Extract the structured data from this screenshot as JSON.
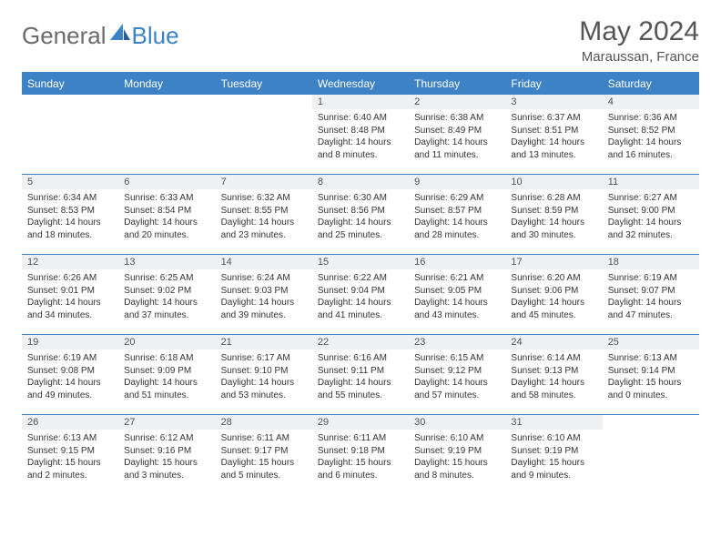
{
  "logo": {
    "part1": "General",
    "part2": "Blue"
  },
  "title": "May 2024",
  "location": "Maraussan, France",
  "colors": {
    "accent": "#3d82c4",
    "header_text": "#ffffff",
    "daynum_bg": "#eef0f2",
    "text": "#333333",
    "logo_gray": "#6b6b6b"
  },
  "weekdays": [
    "Sunday",
    "Monday",
    "Tuesday",
    "Wednesday",
    "Thursday",
    "Friday",
    "Saturday"
  ],
  "weeks": [
    [
      {
        "n": "",
        "lines": []
      },
      {
        "n": "",
        "lines": []
      },
      {
        "n": "",
        "lines": []
      },
      {
        "n": "1",
        "lines": [
          "Sunrise: 6:40 AM",
          "Sunset: 8:48 PM",
          "Daylight: 14 hours and 8 minutes."
        ]
      },
      {
        "n": "2",
        "lines": [
          "Sunrise: 6:38 AM",
          "Sunset: 8:49 PM",
          "Daylight: 14 hours and 11 minutes."
        ]
      },
      {
        "n": "3",
        "lines": [
          "Sunrise: 6:37 AM",
          "Sunset: 8:51 PM",
          "Daylight: 14 hours and 13 minutes."
        ]
      },
      {
        "n": "4",
        "lines": [
          "Sunrise: 6:36 AM",
          "Sunset: 8:52 PM",
          "Daylight: 14 hours and 16 minutes."
        ]
      }
    ],
    [
      {
        "n": "5",
        "lines": [
          "Sunrise: 6:34 AM",
          "Sunset: 8:53 PM",
          "Daylight: 14 hours and 18 minutes."
        ]
      },
      {
        "n": "6",
        "lines": [
          "Sunrise: 6:33 AM",
          "Sunset: 8:54 PM",
          "Daylight: 14 hours and 20 minutes."
        ]
      },
      {
        "n": "7",
        "lines": [
          "Sunrise: 6:32 AM",
          "Sunset: 8:55 PM",
          "Daylight: 14 hours and 23 minutes."
        ]
      },
      {
        "n": "8",
        "lines": [
          "Sunrise: 6:30 AM",
          "Sunset: 8:56 PM",
          "Daylight: 14 hours and 25 minutes."
        ]
      },
      {
        "n": "9",
        "lines": [
          "Sunrise: 6:29 AM",
          "Sunset: 8:57 PM",
          "Daylight: 14 hours and 28 minutes."
        ]
      },
      {
        "n": "10",
        "lines": [
          "Sunrise: 6:28 AM",
          "Sunset: 8:59 PM",
          "Daylight: 14 hours and 30 minutes."
        ]
      },
      {
        "n": "11",
        "lines": [
          "Sunrise: 6:27 AM",
          "Sunset: 9:00 PM",
          "Daylight: 14 hours and 32 minutes."
        ]
      }
    ],
    [
      {
        "n": "12",
        "lines": [
          "Sunrise: 6:26 AM",
          "Sunset: 9:01 PM",
          "Daylight: 14 hours and 34 minutes."
        ]
      },
      {
        "n": "13",
        "lines": [
          "Sunrise: 6:25 AM",
          "Sunset: 9:02 PM",
          "Daylight: 14 hours and 37 minutes."
        ]
      },
      {
        "n": "14",
        "lines": [
          "Sunrise: 6:24 AM",
          "Sunset: 9:03 PM",
          "Daylight: 14 hours and 39 minutes."
        ]
      },
      {
        "n": "15",
        "lines": [
          "Sunrise: 6:22 AM",
          "Sunset: 9:04 PM",
          "Daylight: 14 hours and 41 minutes."
        ]
      },
      {
        "n": "16",
        "lines": [
          "Sunrise: 6:21 AM",
          "Sunset: 9:05 PM",
          "Daylight: 14 hours and 43 minutes."
        ]
      },
      {
        "n": "17",
        "lines": [
          "Sunrise: 6:20 AM",
          "Sunset: 9:06 PM",
          "Daylight: 14 hours and 45 minutes."
        ]
      },
      {
        "n": "18",
        "lines": [
          "Sunrise: 6:19 AM",
          "Sunset: 9:07 PM",
          "Daylight: 14 hours and 47 minutes."
        ]
      }
    ],
    [
      {
        "n": "19",
        "lines": [
          "Sunrise: 6:19 AM",
          "Sunset: 9:08 PM",
          "Daylight: 14 hours and 49 minutes."
        ]
      },
      {
        "n": "20",
        "lines": [
          "Sunrise: 6:18 AM",
          "Sunset: 9:09 PM",
          "Daylight: 14 hours and 51 minutes."
        ]
      },
      {
        "n": "21",
        "lines": [
          "Sunrise: 6:17 AM",
          "Sunset: 9:10 PM",
          "Daylight: 14 hours and 53 minutes."
        ]
      },
      {
        "n": "22",
        "lines": [
          "Sunrise: 6:16 AM",
          "Sunset: 9:11 PM",
          "Daylight: 14 hours and 55 minutes."
        ]
      },
      {
        "n": "23",
        "lines": [
          "Sunrise: 6:15 AM",
          "Sunset: 9:12 PM",
          "Daylight: 14 hours and 57 minutes."
        ]
      },
      {
        "n": "24",
        "lines": [
          "Sunrise: 6:14 AM",
          "Sunset: 9:13 PM",
          "Daylight: 14 hours and 58 minutes."
        ]
      },
      {
        "n": "25",
        "lines": [
          "Sunrise: 6:13 AM",
          "Sunset: 9:14 PM",
          "Daylight: 15 hours and 0 minutes."
        ]
      }
    ],
    [
      {
        "n": "26",
        "lines": [
          "Sunrise: 6:13 AM",
          "Sunset: 9:15 PM",
          "Daylight: 15 hours and 2 minutes."
        ]
      },
      {
        "n": "27",
        "lines": [
          "Sunrise: 6:12 AM",
          "Sunset: 9:16 PM",
          "Daylight: 15 hours and 3 minutes."
        ]
      },
      {
        "n": "28",
        "lines": [
          "Sunrise: 6:11 AM",
          "Sunset: 9:17 PM",
          "Daylight: 15 hours and 5 minutes."
        ]
      },
      {
        "n": "29",
        "lines": [
          "Sunrise: 6:11 AM",
          "Sunset: 9:18 PM",
          "Daylight: 15 hours and 6 minutes."
        ]
      },
      {
        "n": "30",
        "lines": [
          "Sunrise: 6:10 AM",
          "Sunset: 9:19 PM",
          "Daylight: 15 hours and 8 minutes."
        ]
      },
      {
        "n": "31",
        "lines": [
          "Sunrise: 6:10 AM",
          "Sunset: 9:19 PM",
          "Daylight: 15 hours and 9 minutes."
        ]
      },
      {
        "n": "",
        "lines": []
      }
    ]
  ]
}
